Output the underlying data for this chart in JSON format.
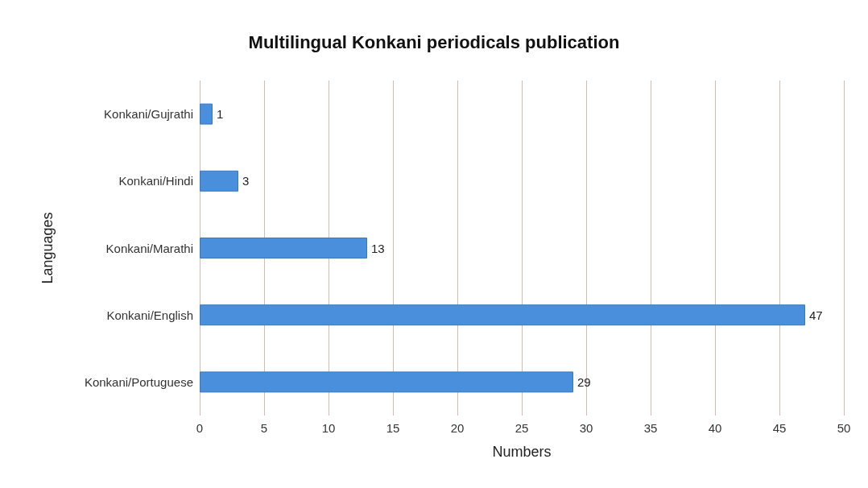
{
  "chart_data": {
    "type": "bar",
    "orientation": "horizontal",
    "title": "Multilingual Konkani periodicals publication",
    "xlabel": "Numbers",
    "ylabel": "Languages",
    "categories": [
      "Konkani/Gujrathi",
      "Konkani/Hindi",
      "Konkani/Marathi",
      "Konkani/English",
      "Konkani/Portuguese"
    ],
    "values": [
      1,
      3,
      13,
      47,
      29
    ],
    "color": "#4a8fdc",
    "data_labels": true,
    "xlim": [
      0,
      50
    ],
    "xticks": [
      0,
      5,
      10,
      15,
      20,
      25,
      30,
      35,
      40,
      45,
      50
    ],
    "grid": "x"
  }
}
